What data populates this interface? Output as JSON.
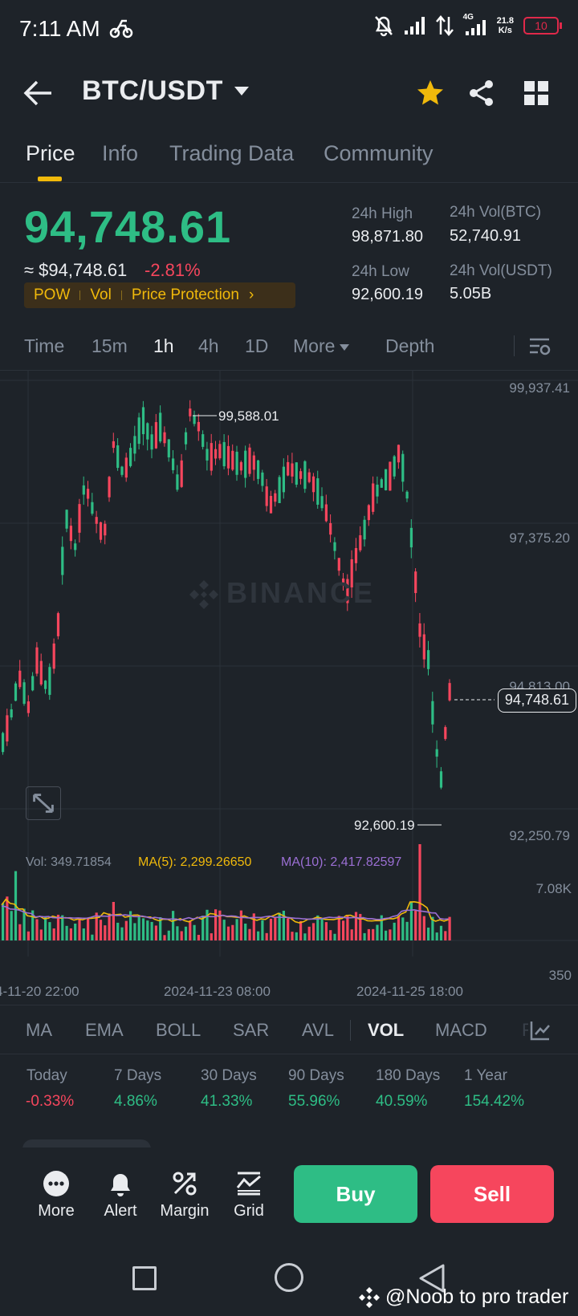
{
  "status_bar": {
    "time": "7:11 AM",
    "network": "4G",
    "speed_value": "21.8",
    "speed_unit": "K/s",
    "battery": "10"
  },
  "header": {
    "pair": "BTC/USDT"
  },
  "tabs": [
    "Price",
    "Info",
    "Trading Data",
    "Community"
  ],
  "price": {
    "last": "94,748.61",
    "usd": "≈ $94,748.61",
    "change": "-2.81%",
    "tags": [
      "POW",
      "Vol",
      "Price Protection"
    ],
    "high_label": "24h High",
    "high": "98,871.80",
    "low_label": "24h Low",
    "low": "92,600.19",
    "vol_btc_label": "24h Vol(BTC)",
    "vol_btc": "52,740.91",
    "vol_usdt_label": "24h Vol(USDT)",
    "vol_usdt": "5.05B"
  },
  "intervals": {
    "time": "Time",
    "m15": "15m",
    "h1": "1h",
    "h4": "4h",
    "d1": "1D",
    "more": "More",
    "depth": "Depth"
  },
  "chart": {
    "y_labels": [
      "99,937.41",
      "97,375.20",
      "94,813.00",
      "92,250.79"
    ],
    "current_price": "94,748.61",
    "high_mark": "99,588.01",
    "low_mark": "92,600.19",
    "watermark": "BINANCE",
    "vol": "Vol: 349.71854",
    "ma5": "MA(5): 2,299.26650",
    "ma10": "MA(10): 2,417.82597",
    "vol_max": "7.08K",
    "vol_min": "350",
    "x_labels": [
      "4-11-20 22:00",
      "2024-11-23 08:00",
      "2024-11-25 18:00"
    ],
    "colors": {
      "up": "#2ebd85",
      "down": "#f6465d",
      "ma5": "#f0b90b",
      "ma10": "#9b6fd4"
    }
  },
  "indicators": [
    "MA",
    "EMA",
    "BOLL",
    "SAR",
    "AVL",
    "VOL",
    "MACD",
    "R"
  ],
  "performance": [
    {
      "label": "Today",
      "value": "-0.33%"
    },
    {
      "label": "7 Days",
      "value": "4.86%"
    },
    {
      "label": "30 Days",
      "value": "41.33%"
    },
    {
      "label": "90 Days",
      "value": "55.96%"
    },
    {
      "label": "180 Days",
      "value": "40.59%"
    },
    {
      "label": "1 Year",
      "value": "154.42%"
    }
  ],
  "actions": {
    "more": "More",
    "alert": "Alert",
    "margin": "Margin",
    "grid": "Grid",
    "buy": "Buy",
    "sell": "Sell"
  },
  "credit": "@Noob to pro trader"
}
